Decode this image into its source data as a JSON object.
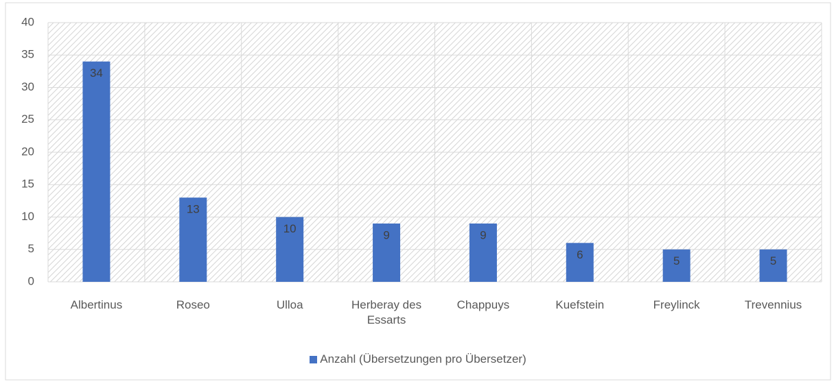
{
  "chart_data": {
    "type": "bar",
    "categories": [
      "Albertinus",
      "Roseo",
      "Ulloa",
      "Herberay des Essarts",
      "Chappuys",
      "Kuefstein",
      "Freylinck",
      "Trevennius"
    ],
    "series": [
      {
        "name": "Anzahl (Übersetzungen pro Übersetzer)",
        "color": "#4472c4",
        "values": [
          34,
          13,
          10,
          9,
          9,
          6,
          5,
          5
        ]
      }
    ],
    "ylim": [
      0,
      40
    ],
    "yticks": [
      0,
      5,
      10,
      15,
      20,
      25,
      30,
      35,
      40
    ],
    "grid": true,
    "legend": "bottom"
  }
}
